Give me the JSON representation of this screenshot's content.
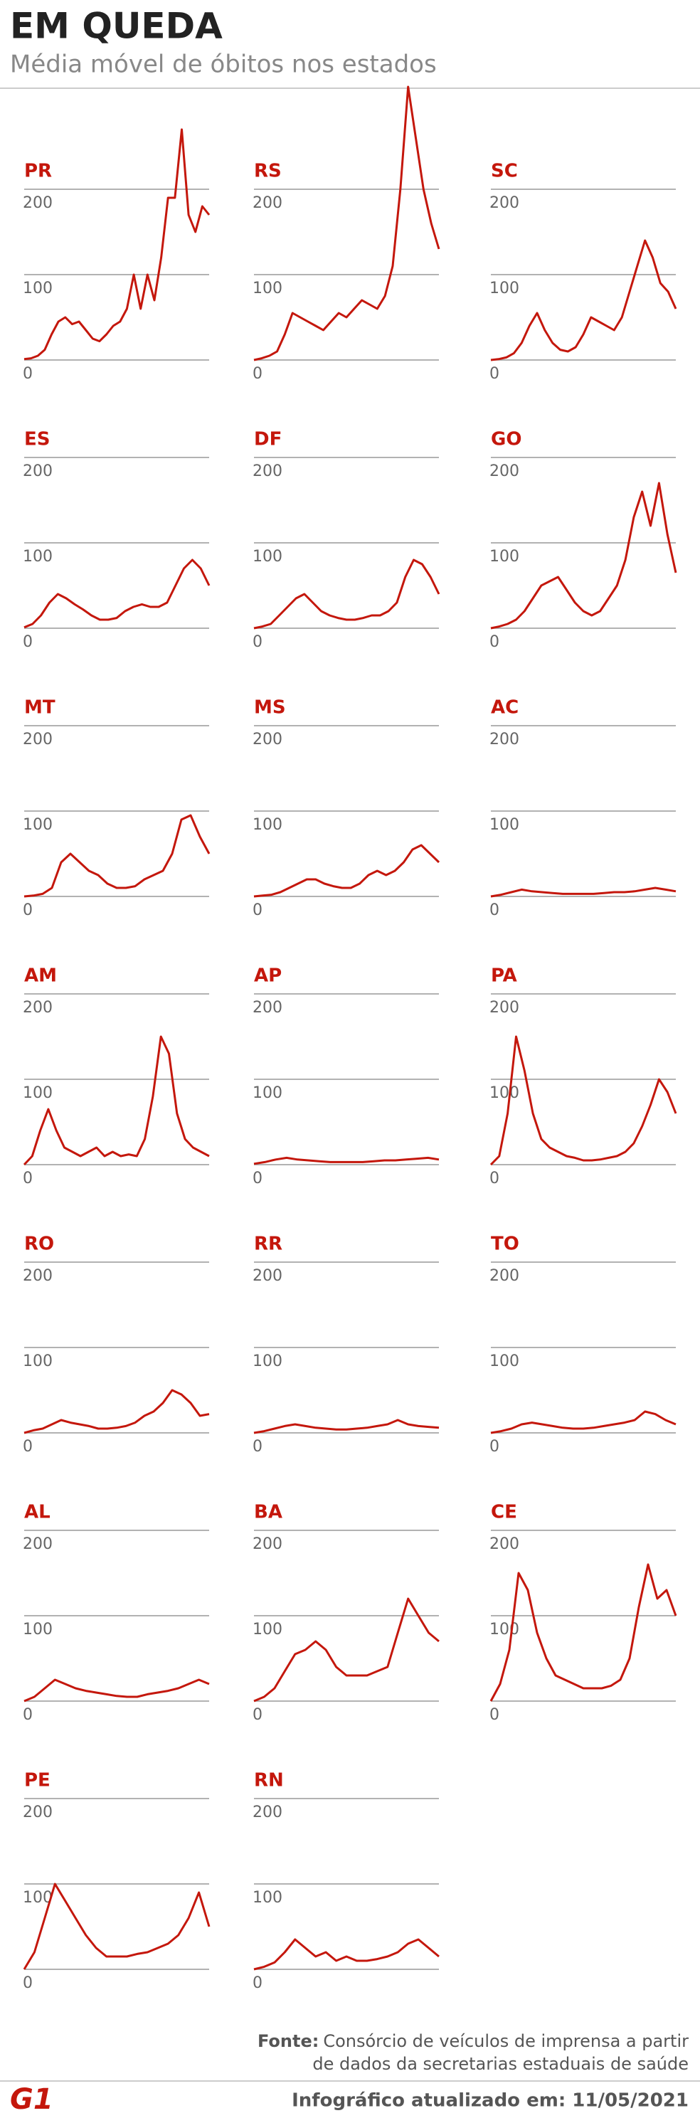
{
  "title": "EM QUEDA",
  "subtitle": "Média móvel de óbitos nos estados",
  "source_label": "Fonte:",
  "source_line1": "Consórcio de veículos de imprensa a partir",
  "source_line2": "de dados da secretarias estaduais de saúde",
  "logo": "G1",
  "footer": "Infográfico atualizado em: 11/05/2021",
  "chart_data": [
    {
      "type": "line",
      "title": "PR",
      "color": "#c4170c",
      "ylim": [
        0,
        200
      ],
      "yticks": [
        0,
        100,
        200
      ],
      "values": [
        1,
        2,
        5,
        12,
        30,
        45,
        50,
        42,
        45,
        35,
        25,
        22,
        30,
        40,
        45,
        60,
        100,
        60,
        100,
        70,
        120,
        190,
        190,
        270,
        170,
        150,
        180,
        170
      ]
    },
    {
      "type": "line",
      "title": "RS",
      "color": "#c4170c",
      "ylim": [
        0,
        200
      ],
      "yticks": [
        0,
        100,
        200
      ],
      "values": [
        0,
        2,
        5,
        10,
        30,
        55,
        50,
        45,
        40,
        35,
        45,
        55,
        50,
        60,
        70,
        65,
        60,
        75,
        110,
        200,
        320,
        260,
        200,
        160,
        130
      ]
    },
    {
      "type": "line",
      "title": "SC",
      "color": "#c4170c",
      "ylim": [
        0,
        200
      ],
      "yticks": [
        0,
        100,
        200
      ],
      "values": [
        0,
        1,
        3,
        8,
        20,
        40,
        55,
        35,
        20,
        12,
        10,
        15,
        30,
        50,
        45,
        40,
        35,
        50,
        80,
        110,
        140,
        120,
        90,
        80,
        60
      ]
    },
    {
      "type": "line",
      "title": "ES",
      "color": "#c4170c",
      "ylim": [
        0,
        200
      ],
      "yticks": [
        0,
        100,
        200
      ],
      "values": [
        1,
        5,
        15,
        30,
        40,
        35,
        28,
        22,
        15,
        10,
        10,
        12,
        20,
        25,
        28,
        25,
        25,
        30,
        50,
        70,
        80,
        70,
        50
      ]
    },
    {
      "type": "line",
      "title": "DF",
      "color": "#c4170c",
      "ylim": [
        0,
        200
      ],
      "yticks": [
        0,
        100,
        200
      ],
      "values": [
        0,
        2,
        5,
        15,
        25,
        35,
        40,
        30,
        20,
        15,
        12,
        10,
        10,
        12,
        15,
        15,
        20,
        30,
        60,
        80,
        75,
        60,
        40
      ]
    },
    {
      "type": "line",
      "title": "GO",
      "color": "#c4170c",
      "ylim": [
        0,
        200
      ],
      "yticks": [
        0,
        100,
        200
      ],
      "values": [
        0,
        2,
        5,
        10,
        20,
        35,
        50,
        55,
        60,
        45,
        30,
        20,
        15,
        20,
        35,
        50,
        80,
        130,
        160,
        120,
        170,
        110,
        65
      ]
    },
    {
      "type": "line",
      "title": "MT",
      "color": "#c4170c",
      "ylim": [
        0,
        200
      ],
      "yticks": [
        0,
        100,
        200
      ],
      "values": [
        0,
        1,
        3,
        10,
        40,
        50,
        40,
        30,
        25,
        15,
        10,
        10,
        12,
        20,
        25,
        30,
        50,
        90,
        95,
        70,
        50
      ]
    },
    {
      "type": "line",
      "title": "MS",
      "color": "#c4170c",
      "ylim": [
        0,
        200
      ],
      "yticks": [
        0,
        100,
        200
      ],
      "values": [
        0,
        1,
        2,
        5,
        10,
        15,
        20,
        20,
        15,
        12,
        10,
        10,
        15,
        25,
        30,
        25,
        30,
        40,
        55,
        60,
        50,
        40
      ]
    },
    {
      "type": "line",
      "title": "AC",
      "color": "#c4170c",
      "ylim": [
        0,
        200
      ],
      "yticks": [
        0,
        100,
        200
      ],
      "values": [
        0,
        2,
        5,
        8,
        6,
        5,
        4,
        3,
        3,
        3,
        3,
        4,
        5,
        5,
        6,
        8,
        10,
        8,
        6
      ]
    },
    {
      "type": "line",
      "title": "AM",
      "color": "#c4170c",
      "ylim": [
        0,
        200
      ],
      "yticks": [
        0,
        100,
        200
      ],
      "values": [
        0,
        10,
        40,
        65,
        40,
        20,
        15,
        10,
        15,
        20,
        10,
        15,
        10,
        12,
        10,
        30,
        80,
        150,
        130,
        60,
        30,
        20,
        15,
        10
      ]
    },
    {
      "type": "line",
      "title": "AP",
      "color": "#c4170c",
      "ylim": [
        0,
        200
      ],
      "yticks": [
        0,
        100,
        200
      ],
      "values": [
        1,
        3,
        6,
        8,
        6,
        5,
        4,
        3,
        3,
        3,
        3,
        4,
        5,
        5,
        6,
        7,
        8,
        6
      ]
    },
    {
      "type": "line",
      "title": "PA",
      "color": "#c4170c",
      "ylim": [
        0,
        200
      ],
      "yticks": [
        0,
        100,
        200
      ],
      "values": [
        0,
        10,
        60,
        150,
        110,
        60,
        30,
        20,
        15,
        10,
        8,
        5,
        5,
        6,
        8,
        10,
        15,
        25,
        45,
        70,
        100,
        85,
        60
      ]
    },
    {
      "type": "line",
      "title": "RO",
      "color": "#c4170c",
      "ylim": [
        0,
        200
      ],
      "yticks": [
        0,
        100,
        200
      ],
      "values": [
        0,
        3,
        5,
        10,
        15,
        12,
        10,
        8,
        5,
        5,
        6,
        8,
        12,
        20,
        25,
        35,
        50,
        45,
        35,
        20,
        22
      ]
    },
    {
      "type": "line",
      "title": "RR",
      "color": "#c4170c",
      "ylim": [
        0,
        200
      ],
      "yticks": [
        0,
        100,
        200
      ],
      "values": [
        0,
        2,
        5,
        8,
        10,
        8,
        6,
        5,
        4,
        4,
        5,
        6,
        8,
        10,
        15,
        10,
        8,
        7,
        6
      ]
    },
    {
      "type": "line",
      "title": "TO",
      "color": "#c4170c",
      "ylim": [
        0,
        200
      ],
      "yticks": [
        0,
        100,
        200
      ],
      "values": [
        0,
        2,
        5,
        10,
        12,
        10,
        8,
        6,
        5,
        5,
        6,
        8,
        10,
        12,
        15,
        25,
        22,
        15,
        10
      ]
    },
    {
      "type": "line",
      "title": "AL",
      "color": "#c4170c",
      "ylim": [
        0,
        200
      ],
      "yticks": [
        0,
        100,
        200
      ],
      "values": [
        0,
        5,
        15,
        25,
        20,
        15,
        12,
        10,
        8,
        6,
        5,
        5,
        8,
        10,
        12,
        15,
        20,
        25,
        20
      ]
    },
    {
      "type": "line",
      "title": "BA",
      "color": "#c4170c",
      "ylim": [
        0,
        200
      ],
      "yticks": [
        0,
        100,
        200
      ],
      "values": [
        0,
        5,
        15,
        35,
        55,
        60,
        70,
        60,
        40,
        30,
        30,
        30,
        35,
        40,
        80,
        120,
        100,
        80,
        70
      ]
    },
    {
      "type": "line",
      "title": "CE",
      "color": "#c4170c",
      "ylim": [
        0,
        200
      ],
      "yticks": [
        0,
        100,
        200
      ],
      "values": [
        0,
        20,
        60,
        150,
        130,
        80,
        50,
        30,
        25,
        20,
        15,
        15,
        15,
        18,
        25,
        50,
        110,
        160,
        120,
        130,
        100
      ]
    },
    {
      "type": "line",
      "title": "PE",
      "color": "#c4170c",
      "ylim": [
        0,
        200
      ],
      "yticks": [
        0,
        100,
        200
      ],
      "values": [
        0,
        20,
        60,
        100,
        80,
        60,
        40,
        25,
        15,
        15,
        15,
        18,
        20,
        25,
        30,
        40,
        60,
        90,
        50
      ]
    },
    {
      "type": "line",
      "title": "RN",
      "color": "#c4170c",
      "ylim": [
        0,
        200
      ],
      "yticks": [
        0,
        100,
        200
      ],
      "values": [
        0,
        3,
        8,
        20,
        35,
        25,
        15,
        20,
        10,
        15,
        10,
        10,
        12,
        15,
        20,
        30,
        35,
        25,
        15
      ]
    }
  ]
}
